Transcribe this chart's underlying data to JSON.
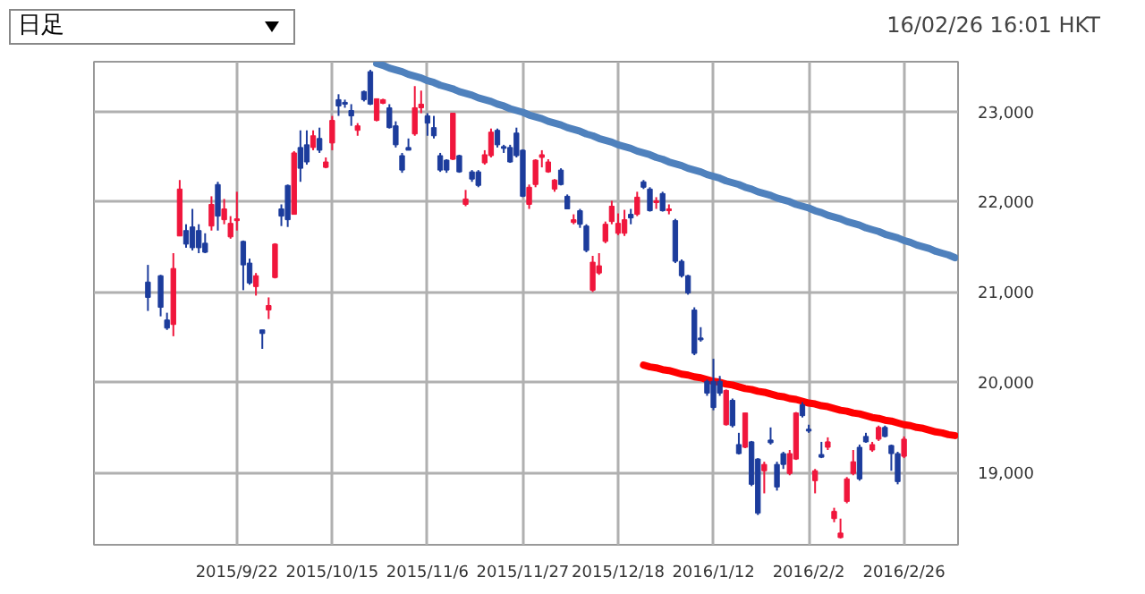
{
  "chart_data": {
    "type": "candlestick",
    "annotations": [
      "日足",
      "16/02/26 16:01 HKT"
    ],
    "categories": [
      null,
      null,
      null,
      null,
      null,
      null,
      null,
      null,
      null,
      null,
      null,
      null,
      null,
      null,
      null,
      null,
      null,
      null,
      null,
      null,
      null,
      null,
      "2015/9/22",
      null,
      null,
      null,
      null,
      null,
      null,
      null,
      null,
      null,
      null,
      null,
      null,
      null,
      null,
      "2015/10/15",
      null,
      null,
      null,
      null,
      null,
      null,
      null,
      null,
      null,
      null,
      null,
      null,
      null,
      null,
      "2015/11/6",
      null,
      null,
      null,
      null,
      null,
      null,
      null,
      null,
      null,
      null,
      null,
      null,
      null,
      null,
      "2015/11/27",
      null,
      null,
      null,
      null,
      null,
      null,
      null,
      null,
      null,
      null,
      null,
      null,
      null,
      null,
      "2015/12/18",
      null,
      null,
      null,
      null,
      null,
      null,
      null,
      null,
      null,
      null,
      null,
      null,
      null,
      null,
      "2016/1/12",
      null,
      null,
      null,
      null,
      null,
      null,
      null,
      null,
      null,
      null,
      null,
      null,
      null,
      null,
      "2016/2/2",
      null,
      null,
      null,
      null,
      null,
      null,
      null,
      null,
      null,
      null,
      null,
      null,
      null,
      null,
      "2016/2/26",
      null,
      null,
      null,
      null,
      null,
      null,
      null,
      null
    ],
    "ohlc": [
      null,
      null,
      null,
      null,
      null,
      null,
      null,
      null,
      [
        21110,
        21300,
        20790,
        20940
      ],
      null,
      [
        21180,
        21190,
        20730,
        20830
      ],
      [
        20690,
        20770,
        20580,
        20600
      ],
      [
        20640,
        21430,
        20510,
        21260
      ],
      [
        21620,
        22240,
        21620,
        22140
      ],
      [
        21680,
        21750,
        21490,
        21530
      ],
      [
        21720,
        21920,
        21460,
        21490
      ],
      [
        21680,
        21750,
        21430,
        21490
      ],
      [
        21540,
        21650,
        21430,
        21440
      ],
      [
        21730,
        22060,
        21680,
        21970
      ],
      [
        22190,
        22220,
        21680,
        21840
      ],
      [
        21800,
        22030,
        21750,
        21920
      ],
      [
        21610,
        21840,
        21590,
        21760
      ],
      [
        21790,
        22110,
        21680,
        21810
      ],
      [
        21560,
        21570,
        21020,
        21300
      ],
      [
        21320,
        21370,
        21080,
        21100
      ],
      [
        21060,
        21210,
        20960,
        21180
      ],
      [
        20580,
        20580,
        20370,
        20540
      ],
      [
        20800,
        20940,
        20700,
        20850
      ],
      [
        21160,
        21540,
        21150,
        21530
      ],
      [
        21920,
        21970,
        21730,
        21840
      ],
      [
        22180,
        22190,
        21720,
        21800
      ],
      [
        21860,
        22560,
        21860,
        22540
      ],
      [
        22600,
        22790,
        22220,
        22370
      ],
      [
        22630,
        22790,
        22410,
        22440
      ],
      [
        22600,
        22790,
        22570,
        22730
      ],
      [
        22700,
        22820,
        22540,
        22570
      ],
      [
        22380,
        22490,
        22370,
        22440
      ],
      [
        22650,
        22950,
        22570,
        22900
      ],
      [
        23130,
        23190,
        22950,
        23060
      ],
      [
        23100,
        23130,
        23040,
        23080
      ],
      [
        23010,
        23080,
        22840,
        22950
      ],
      [
        22790,
        22870,
        22730,
        22840
      ],
      [
        23220,
        23230,
        23110,
        23130
      ],
      [
        23440,
        23460,
        23070,
        23080
      ],
      [
        22900,
        23140,
        22890,
        23140
      ],
      [
        23090,
        23140,
        23080,
        23130
      ],
      [
        23040,
        23080,
        22810,
        22820
      ],
      [
        22840,
        22890,
        22600,
        22630
      ],
      [
        22510,
        22540,
        22320,
        22350
      ],
      [
        22600,
        22700,
        22570,
        22570
      ],
      [
        22750,
        23280,
        22730,
        23040
      ],
      [
        23040,
        23230,
        22980,
        23080
      ],
      [
        22950,
        22980,
        22730,
        22870
      ],
      [
        22820,
        22950,
        22700,
        22730
      ],
      [
        22510,
        22540,
        22330,
        22350
      ],
      [
        22460,
        22470,
        22320,
        22350
      ],
      [
        22470,
        22980,
        22460,
        22980
      ],
      [
        22510,
        22520,
        22320,
        22330
      ],
      [
        21970,
        22130,
        21950,
        22030
      ],
      [
        22330,
        22350,
        22220,
        22250
      ],
      [
        22330,
        22350,
        22160,
        22180
      ],
      [
        22430,
        22570,
        22410,
        22520
      ],
      [
        22510,
        22810,
        22490,
        22770
      ],
      [
        22790,
        22810,
        22600,
        22630
      ],
      [
        22610,
        22630,
        22540,
        22590
      ],
      [
        22600,
        22630,
        22430,
        22440
      ],
      [
        22760,
        22820,
        22490,
        22510
      ],
      [
        22570,
        22580,
        22050,
        22060
      ],
      [
        21970,
        22190,
        21920,
        22160
      ],
      [
        22190,
        22470,
        22160,
        22460
      ],
      [
        22490,
        22570,
        22380,
        22520
      ],
      [
        22330,
        22470,
        22320,
        22440
      ],
      [
        22140,
        22250,
        22110,
        22240
      ],
      [
        22350,
        22370,
        22180,
        22190
      ],
      [
        22060,
        22080,
        21920,
        21920
      ],
      [
        21770,
        21860,
        21750,
        21800
      ],
      [
        21900,
        21920,
        21710,
        21750
      ],
      [
        21730,
        21750,
        21440,
        21460
      ],
      [
        21020,
        21400,
        21000,
        21330
      ],
      [
        21210,
        21430,
        21190,
        21290
      ],
      [
        21560,
        21780,
        21540,
        21750
      ],
      [
        21780,
        22010,
        21750,
        21950
      ],
      [
        21650,
        21870,
        21630,
        21760
      ],
      [
        21650,
        21910,
        21620,
        21800
      ],
      [
        21860,
        21920,
        21750,
        21820
      ],
      [
        21860,
        22110,
        21840,
        22050
      ],
      [
        22220,
        22240,
        22140,
        22160
      ],
      [
        22140,
        22160,
        21890,
        21900
      ],
      [
        21990,
        22050,
        21920,
        22010
      ],
      [
        22090,
        22110,
        21890,
        21900
      ],
      [
        21900,
        21970,
        21860,
        21920
      ],
      [
        21790,
        21810,
        21320,
        21340
      ],
      [
        21340,
        21360,
        21160,
        21180
      ],
      [
        21180,
        21190,
        20970,
        20990
      ],
      [
        20800,
        20830,
        20300,
        20320
      ],
      [
        20490,
        20610,
        20450,
        20470
      ],
      [
        20010,
        20030,
        19850,
        19880
      ],
      [
        20010,
        20260,
        19690,
        19720
      ],
      [
        20010,
        20070,
        19850,
        19880
      ],
      [
        19530,
        19920,
        19520,
        19910
      ],
      [
        19800,
        19820,
        19500,
        19520
      ],
      [
        19310,
        19440,
        19200,
        19210
      ],
      [
        19280,
        19660,
        19270,
        19660
      ],
      [
        19340,
        19350,
        18850,
        18870
      ],
      [
        19150,
        19160,
        18530,
        18550
      ],
      [
        19020,
        19120,
        18770,
        19090
      ],
      [
        19360,
        19500,
        19310,
        19330
      ],
      [
        19090,
        19120,
        18800,
        18840
      ],
      [
        19210,
        19230,
        19040,
        19090
      ],
      [
        18990,
        19250,
        18970,
        19210
      ],
      [
        19150,
        19670,
        19140,
        19660
      ],
      [
        19750,
        19780,
        19610,
        19630
      ],
      [
        19480,
        19530,
        19440,
        19460
      ],
      [
        18910,
        19040,
        18770,
        19020
      ],
      [
        19200,
        19340,
        19160,
        19170
      ],
      [
        19280,
        19390,
        19250,
        19340
      ],
      [
        18490,
        18610,
        18450,
        18570
      ],
      [
        18280,
        18490,
        18270,
        18330
      ],
      [
        18680,
        18950,
        18660,
        18930
      ],
      [
        18990,
        19250,
        18970,
        19120
      ],
      [
        19280,
        19310,
        18910,
        18930
      ],
      [
        19400,
        19440,
        19330,
        19340
      ],
      [
        19250,
        19340,
        19230,
        19310
      ],
      [
        19370,
        19520,
        19350,
        19500
      ],
      [
        19500,
        19520,
        19390,
        19400
      ],
      [
        19300,
        19310,
        19020,
        19210
      ],
      [
        19210,
        19230,
        18870,
        18900
      ],
      [
        19180,
        19400,
        19160,
        19370
      ],
      null,
      null,
      null,
      null,
      null,
      null,
      null,
      null
    ],
    "colors": [
      null,
      null,
      null,
      null,
      null,
      null,
      null,
      null,
      "#1c3c9c",
      null,
      "#1c3c9c",
      "#1c3c9c",
      "#f0163c",
      "#f0163c",
      "#1c3c9c",
      "#1c3c9c",
      "#1c3c9c",
      "#1c3c9c",
      "#f0163c",
      "#1c3c9c",
      "#f0163c",
      "#f0163c",
      "#f0163c",
      "#1c3c9c",
      "#1c3c9c",
      "#f0163c",
      "#1c3c9c",
      "#f0163c",
      "#f0163c",
      "#1c3c9c",
      "#1c3c9c",
      "#f0163c",
      "#1c3c9c",
      "#1c3c9c",
      "#f0163c",
      "#1c3c9c",
      "#f0163c",
      "#f0163c",
      "#1c3c9c",
      "#1c3c9c",
      "#1c3c9c",
      "#f0163c",
      "#1c3c9c",
      "#1c3c9c",
      "#f0163c",
      "#f0163c",
      "#1c3c9c",
      "#1c3c9c",
      "#1c3c9c",
      "#1c3c9c",
      "#f0163c",
      "#f0163c",
      "#1c3c9c",
      "#1c3c9c",
      "#1c3c9c",
      "#1c3c9c",
      "#f0163c",
      "#1c3c9c",
      "#f0163c",
      "#1c3c9c",
      "#1c3c9c",
      "#f0163c",
      "#f0163c",
      "#1c3c9c",
      "#1c3c9c",
      "#1c3c9c",
      "#1c3c9c",
      "#1c3c9c",
      "#f0163c",
      "#f0163c",
      "#f0163c",
      "#f0163c",
      "#f0163c",
      "#1c3c9c",
      "#1c3c9c",
      "#f0163c",
      "#1c3c9c",
      "#1c3c9c",
      "#f0163c",
      "#f0163c",
      "#f0163c",
      "#f0163c",
      "#f0163c",
      "#f0163c",
      "#1c3c9c",
      "#f0163c",
      "#1c3c9c",
      "#1c3c9c",
      "#f0163c",
      "#1c3c9c",
      "#f0163c",
      "#1c3c9c",
      "#1c3c9c",
      "#1c3c9c",
      "#1c3c9c",
      "#1c3c9c",
      "#1c3c9c",
      "#1c3c9c",
      "#1c3c9c",
      "#f0163c",
      "#1c3c9c",
      "#1c3c9c",
      "#f0163c",
      "#1c3c9c",
      "#1c3c9c",
      "#f0163c",
      "#1c3c9c",
      "#1c3c9c",
      "#1c3c9c",
      "#f0163c",
      "#f0163c",
      "#1c3c9c",
      "#1c3c9c",
      "#f0163c",
      "#1c3c9c",
      "#f0163c",
      "#f0163c",
      "#f0163c",
      "#f0163c",
      "#f0163c",
      "#1c3c9c",
      "#1c3c9c",
      "#f0163c",
      "#f0163c",
      "#1c3c9c",
      "#1c3c9c",
      "#1c3c9c",
      "#f0163c",
      null,
      null,
      null,
      null,
      null,
      null,
      null,
      null
    ],
    "ylim": [
      18200,
      23550
    ],
    "yticks": [
      {
        "value": 19000,
        "label": "19,000"
      },
      {
        "value": 20000,
        "label": "20,000"
      },
      {
        "value": 21000,
        "label": "21,000"
      },
      {
        "value": 22000,
        "label": "22,000"
      },
      {
        "value": 23000,
        "label": "23,000"
      }
    ],
    "grid": true,
    "series": [
      {
        "type": "line",
        "color": "#4f81bd",
        "values": [
          null,
          null,
          null,
          null,
          null,
          null,
          null,
          null,
          null,
          null,
          null,
          null,
          null,
          null,
          null,
          null,
          null,
          null,
          null,
          null,
          null,
          null,
          null,
          null,
          null,
          null,
          null,
          null,
          null,
          null,
          null,
          null,
          null,
          null,
          null,
          null,
          null,
          null,
          null,
          null,
          null,
          null,
          null,
          null,
          23530,
          23510,
          23480,
          23460,
          23440,
          23410,
          23390,
          23370,
          23340,
          23320,
          23290,
          23270,
          23250,
          23220,
          23200,
          23180,
          23150,
          23130,
          23110,
          23080,
          23060,
          23030,
          23010,
          22990,
          22960,
          22940,
          22920,
          22890,
          22870,
          22850,
          22820,
          22800,
          22780,
          22750,
          22730,
          22700,
          22680,
          22660,
          22630,
          22610,
          22590,
          22560,
          22540,
          22520,
          22490,
          22470,
          22440,
          22420,
          22400,
          22370,
          22350,
          22330,
          22300,
          22280,
          22260,
          22230,
          22210,
          22190,
          22160,
          22140,
          22110,
          22090,
          22070,
          22040,
          22020,
          22000,
          21970,
          21950,
          21930,
          21900,
          21880,
          21850,
          21830,
          21810,
          21780,
          21760,
          21740,
          21710,
          21690,
          21670,
          21640,
          21620,
          21600,
          21570,
          21550,
          21520,
          21500,
          21480,
          21450,
          21430,
          21410,
          21380
        ]
      },
      {
        "type": "line",
        "color": "#ff0000",
        "values": [
          null,
          null,
          null,
          null,
          null,
          null,
          null,
          null,
          null,
          null,
          null,
          null,
          null,
          null,
          null,
          null,
          null,
          null,
          null,
          null,
          null,
          null,
          null,
          null,
          null,
          null,
          null,
          null,
          null,
          null,
          null,
          null,
          null,
          null,
          null,
          null,
          null,
          null,
          null,
          null,
          null,
          null,
          null,
          null,
          null,
          null,
          null,
          null,
          null,
          null,
          null,
          null,
          null,
          null,
          null,
          null,
          null,
          null,
          null,
          null,
          null,
          null,
          null,
          null,
          null,
          null,
          null,
          null,
          null,
          null,
          null,
          null,
          null,
          null,
          null,
          null,
          null,
          null,
          null,
          null,
          null,
          null,
          null,
          null,
          null,
          null,
          20190,
          20170,
          20160,
          20140,
          20130,
          20110,
          20090,
          20080,
          20060,
          20050,
          20030,
          20010,
          20000,
          19980,
          19970,
          19950,
          19930,
          19920,
          19900,
          19890,
          19870,
          19850,
          19840,
          19820,
          19810,
          19790,
          19770,
          19760,
          19740,
          19730,
          19710,
          19690,
          19680,
          19660,
          19650,
          19630,
          19610,
          19600,
          19580,
          19570,
          19550,
          19530,
          19520,
          19500,
          19490,
          19470,
          19450,
          19440,
          19420,
          19410
        ]
      }
    ]
  }
}
